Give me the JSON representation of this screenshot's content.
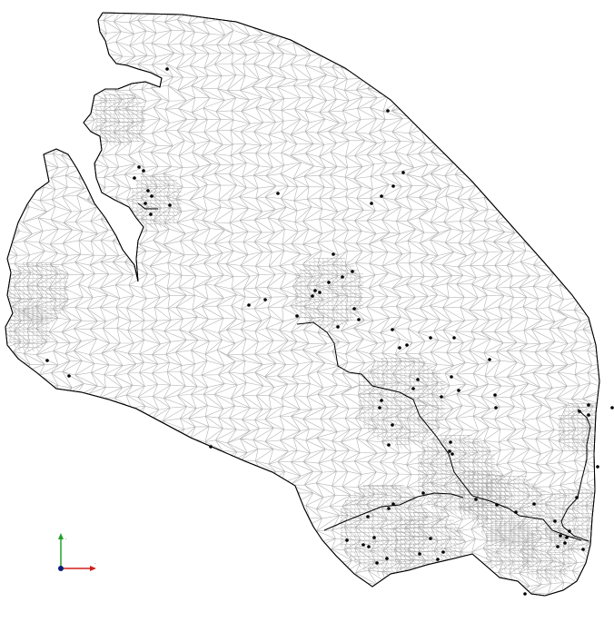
{
  "view": {
    "background": "#ffffff",
    "mesh_fill": "#ffffff",
    "mesh_line_color": "#b4b4b4",
    "outline_color": "#000000",
    "node_color": "#000000"
  },
  "axes": {
    "x_label": "·",
    "y_label": "·",
    "x_color": "#d0201b",
    "y_color": "#22a02a",
    "origin_color": "#0a1f7a"
  }
}
